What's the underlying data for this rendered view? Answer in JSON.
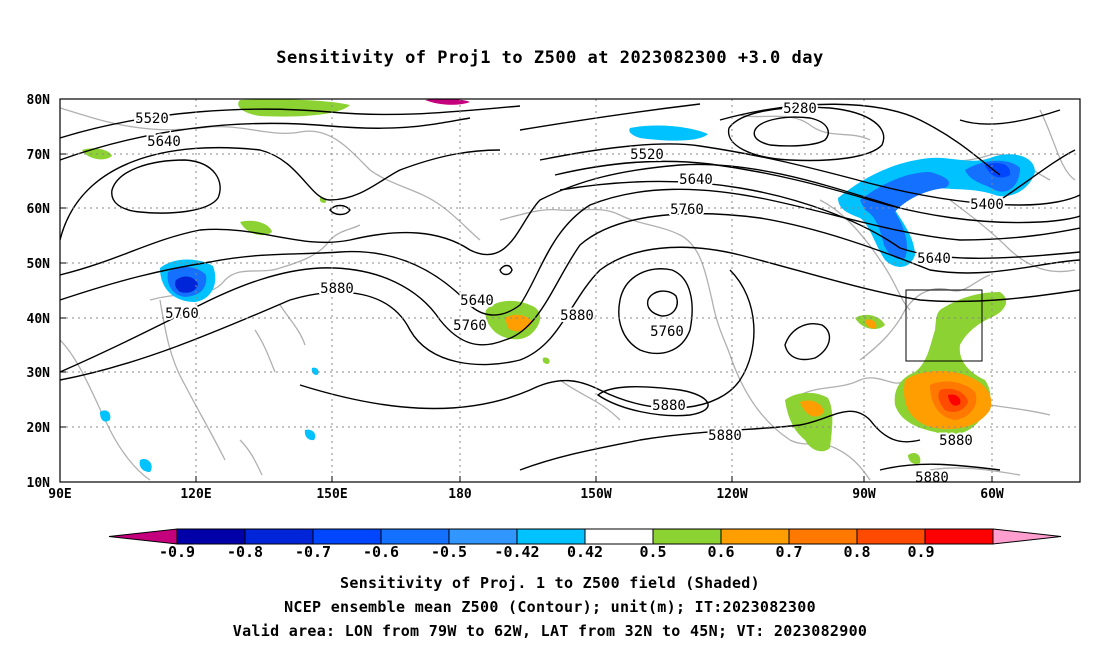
{
  "title": "Sensitivity of Proj1 to Z500 at 2023082300 +3.0 day",
  "axes": {
    "lat_labels": [
      "80N",
      "70N",
      "60N",
      "50N",
      "40N",
      "30N",
      "20N",
      "10N"
    ],
    "lon_labels": [
      "90E",
      "120E",
      "150E",
      "180",
      "150W",
      "120W",
      "90W",
      "60W"
    ]
  },
  "contour_labels": [
    "5520",
    "5640",
    "5280",
    "5520",
    "5640",
    "5760",
    "5400",
    "5640",
    "5880",
    "5640",
    "5760",
    "5880",
    "5760",
    "5760",
    "5880",
    "5880",
    "5880",
    "5880"
  ],
  "colorbar": {
    "labels": [
      "-0.9",
      "-0.8",
      "-0.7",
      "-0.6",
      "-0.5",
      "-0.42",
      "0.42",
      "0.5",
      "0.6",
      "0.7",
      "0.8",
      "0.9"
    ],
    "colors": [
      "#c4007c",
      "#0000a8",
      "#0024d8",
      "#0046ff",
      "#1470ff",
      "#3296ff",
      "#00c2ff",
      "#ffffff",
      "#8cd232",
      "#ff9e00",
      "#ff7800",
      "#ff4b00",
      "#ff0000",
      "#ff9ecf"
    ]
  },
  "footer": {
    "line1": "Sensitivity of Proj. 1 to Z500 field (Shaded)",
    "line2": "NCEP ensemble mean Z500 (Contour); unit(m); IT:2023082300",
    "line3": "Valid area: LON from 79W to 62W, LAT from 32N to 45N; VT: 2023082900"
  }
}
